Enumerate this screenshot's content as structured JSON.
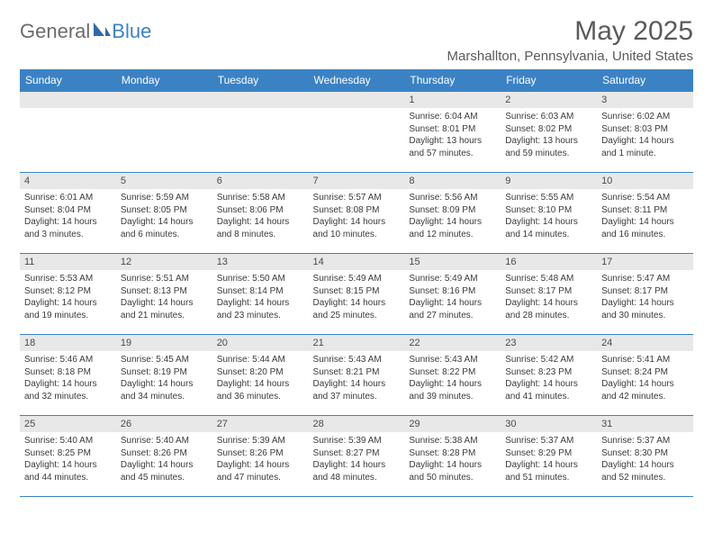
{
  "logo": {
    "general": "General",
    "blue": "Blue"
  },
  "title": "May 2025",
  "location": "Marshallton, Pennsylvania, United States",
  "colors": {
    "header_bg": "#3b82c4",
    "header_text": "#ffffff",
    "band_bg": "#e8e8e8",
    "body_text": "#3a3a3a",
    "title_text": "#5a5a5a",
    "border": "#3b82c4"
  },
  "day_headers": [
    "Sunday",
    "Monday",
    "Tuesday",
    "Wednesday",
    "Thursday",
    "Friday",
    "Saturday"
  ],
  "weeks": [
    [
      null,
      null,
      null,
      null,
      {
        "n": "1",
        "sr": "Sunrise: 6:04 AM",
        "ss": "Sunset: 8:01 PM",
        "dl": "Daylight: 13 hours and 57 minutes."
      },
      {
        "n": "2",
        "sr": "Sunrise: 6:03 AM",
        "ss": "Sunset: 8:02 PM",
        "dl": "Daylight: 13 hours and 59 minutes."
      },
      {
        "n": "3",
        "sr": "Sunrise: 6:02 AM",
        "ss": "Sunset: 8:03 PM",
        "dl": "Daylight: 14 hours and 1 minute."
      }
    ],
    [
      {
        "n": "4",
        "sr": "Sunrise: 6:01 AM",
        "ss": "Sunset: 8:04 PM",
        "dl": "Daylight: 14 hours and 3 minutes."
      },
      {
        "n": "5",
        "sr": "Sunrise: 5:59 AM",
        "ss": "Sunset: 8:05 PM",
        "dl": "Daylight: 14 hours and 6 minutes."
      },
      {
        "n": "6",
        "sr": "Sunrise: 5:58 AM",
        "ss": "Sunset: 8:06 PM",
        "dl": "Daylight: 14 hours and 8 minutes."
      },
      {
        "n": "7",
        "sr": "Sunrise: 5:57 AM",
        "ss": "Sunset: 8:08 PM",
        "dl": "Daylight: 14 hours and 10 minutes."
      },
      {
        "n": "8",
        "sr": "Sunrise: 5:56 AM",
        "ss": "Sunset: 8:09 PM",
        "dl": "Daylight: 14 hours and 12 minutes."
      },
      {
        "n": "9",
        "sr": "Sunrise: 5:55 AM",
        "ss": "Sunset: 8:10 PM",
        "dl": "Daylight: 14 hours and 14 minutes."
      },
      {
        "n": "10",
        "sr": "Sunrise: 5:54 AM",
        "ss": "Sunset: 8:11 PM",
        "dl": "Daylight: 14 hours and 16 minutes."
      }
    ],
    [
      {
        "n": "11",
        "sr": "Sunrise: 5:53 AM",
        "ss": "Sunset: 8:12 PM",
        "dl": "Daylight: 14 hours and 19 minutes."
      },
      {
        "n": "12",
        "sr": "Sunrise: 5:51 AM",
        "ss": "Sunset: 8:13 PM",
        "dl": "Daylight: 14 hours and 21 minutes."
      },
      {
        "n": "13",
        "sr": "Sunrise: 5:50 AM",
        "ss": "Sunset: 8:14 PM",
        "dl": "Daylight: 14 hours and 23 minutes."
      },
      {
        "n": "14",
        "sr": "Sunrise: 5:49 AM",
        "ss": "Sunset: 8:15 PM",
        "dl": "Daylight: 14 hours and 25 minutes."
      },
      {
        "n": "15",
        "sr": "Sunrise: 5:49 AM",
        "ss": "Sunset: 8:16 PM",
        "dl": "Daylight: 14 hours and 27 minutes."
      },
      {
        "n": "16",
        "sr": "Sunrise: 5:48 AM",
        "ss": "Sunset: 8:17 PM",
        "dl": "Daylight: 14 hours and 28 minutes."
      },
      {
        "n": "17",
        "sr": "Sunrise: 5:47 AM",
        "ss": "Sunset: 8:17 PM",
        "dl": "Daylight: 14 hours and 30 minutes."
      }
    ],
    [
      {
        "n": "18",
        "sr": "Sunrise: 5:46 AM",
        "ss": "Sunset: 8:18 PM",
        "dl": "Daylight: 14 hours and 32 minutes."
      },
      {
        "n": "19",
        "sr": "Sunrise: 5:45 AM",
        "ss": "Sunset: 8:19 PM",
        "dl": "Daylight: 14 hours and 34 minutes."
      },
      {
        "n": "20",
        "sr": "Sunrise: 5:44 AM",
        "ss": "Sunset: 8:20 PM",
        "dl": "Daylight: 14 hours and 36 minutes."
      },
      {
        "n": "21",
        "sr": "Sunrise: 5:43 AM",
        "ss": "Sunset: 8:21 PM",
        "dl": "Daylight: 14 hours and 37 minutes."
      },
      {
        "n": "22",
        "sr": "Sunrise: 5:43 AM",
        "ss": "Sunset: 8:22 PM",
        "dl": "Daylight: 14 hours and 39 minutes."
      },
      {
        "n": "23",
        "sr": "Sunrise: 5:42 AM",
        "ss": "Sunset: 8:23 PM",
        "dl": "Daylight: 14 hours and 41 minutes."
      },
      {
        "n": "24",
        "sr": "Sunrise: 5:41 AM",
        "ss": "Sunset: 8:24 PM",
        "dl": "Daylight: 14 hours and 42 minutes."
      }
    ],
    [
      {
        "n": "25",
        "sr": "Sunrise: 5:40 AM",
        "ss": "Sunset: 8:25 PM",
        "dl": "Daylight: 14 hours and 44 minutes."
      },
      {
        "n": "26",
        "sr": "Sunrise: 5:40 AM",
        "ss": "Sunset: 8:26 PM",
        "dl": "Daylight: 14 hours and 45 minutes."
      },
      {
        "n": "27",
        "sr": "Sunrise: 5:39 AM",
        "ss": "Sunset: 8:26 PM",
        "dl": "Daylight: 14 hours and 47 minutes."
      },
      {
        "n": "28",
        "sr": "Sunrise: 5:39 AM",
        "ss": "Sunset: 8:27 PM",
        "dl": "Daylight: 14 hours and 48 minutes."
      },
      {
        "n": "29",
        "sr": "Sunrise: 5:38 AM",
        "ss": "Sunset: 8:28 PM",
        "dl": "Daylight: 14 hours and 50 minutes."
      },
      {
        "n": "30",
        "sr": "Sunrise: 5:37 AM",
        "ss": "Sunset: 8:29 PM",
        "dl": "Daylight: 14 hours and 51 minutes."
      },
      {
        "n": "31",
        "sr": "Sunrise: 5:37 AM",
        "ss": "Sunset: 8:30 PM",
        "dl": "Daylight: 14 hours and 52 minutes."
      }
    ]
  ]
}
